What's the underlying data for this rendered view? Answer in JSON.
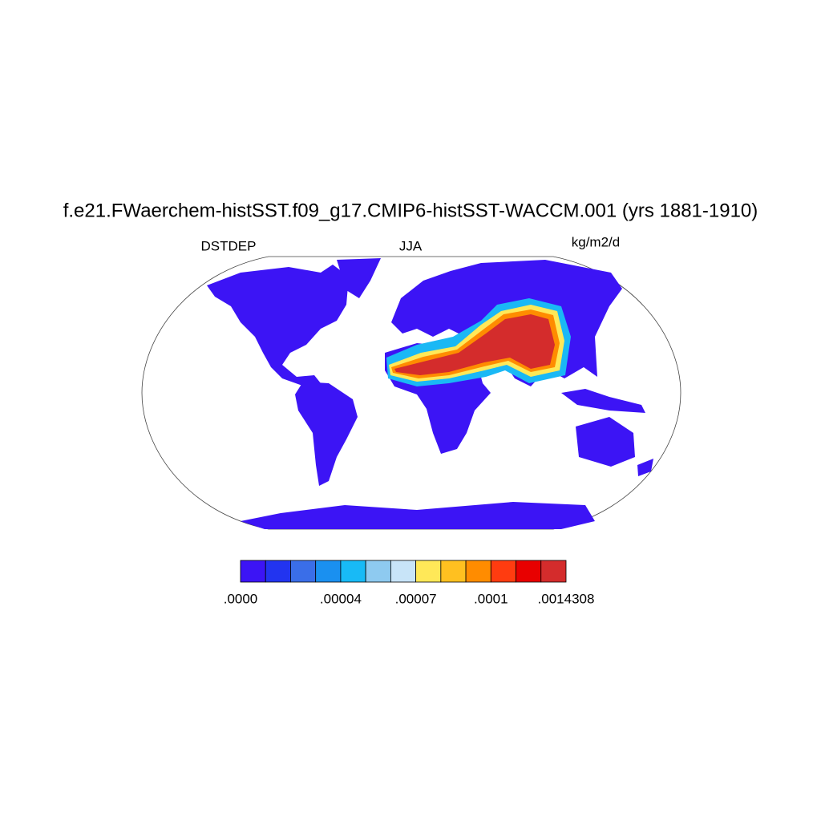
{
  "title": "f.e21.FWaerchem-histSST.f09_g17.CMIP6-histSST-WACCM.001 (yrs 1881-1910)",
  "left_label": "DSTDEP",
  "center_label": "JJA",
  "units": "kg/m2/d",
  "colorbar": {
    "colors": [
      "#3c14f5",
      "#2234f0",
      "#3a6ee8",
      "#1a90f0",
      "#18baf6",
      "#8ecaf0",
      "#c8e4f8",
      "#ffe858",
      "#ffc020",
      "#ff8c00",
      "#ff3c10",
      "#e80000",
      "#d42c2c"
    ],
    "labels": [
      ".0000",
      null,
      null,
      null,
      ".00004",
      null,
      null,
      ".00007",
      null,
      null,
      ".0001",
      null,
      null,
      ".0014308"
    ]
  }
}
